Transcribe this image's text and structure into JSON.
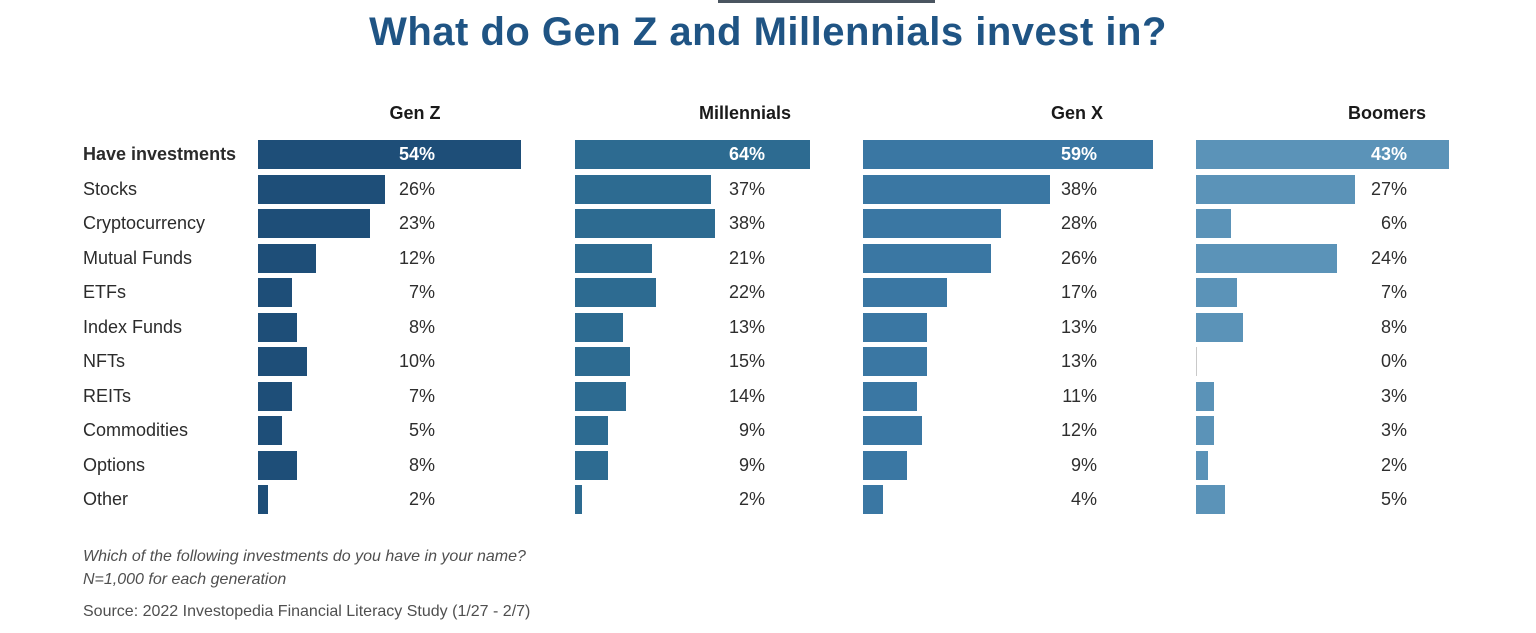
{
  "title": "What do Gen Z and Millennials invest in?",
  "chart_data": {
    "type": "bar",
    "orientation": "horizontal",
    "unit": "%",
    "title": "What do Gen Z and Millennials invest in?",
    "categories": [
      "Have investments",
      "Stocks",
      "Cryptocurrency",
      "Mutual Funds",
      "ETFs",
      "Index Funds",
      "NFTs",
      "REITs",
      "Commodities",
      "Options",
      "Other"
    ],
    "series": [
      {
        "name": "Gen Z",
        "color": "#1e4e78",
        "values": [
          54,
          26,
          23,
          12,
          7,
          8,
          10,
          7,
          5,
          8,
          2
        ]
      },
      {
        "name": "Millennials",
        "color": "#2d6b91",
        "values": [
          64,
          37,
          38,
          21,
          22,
          13,
          15,
          14,
          9,
          9,
          2
        ]
      },
      {
        "name": "Gen X",
        "color": "#3a77a3",
        "values": [
          59,
          38,
          28,
          26,
          17,
          13,
          13,
          11,
          12,
          9,
          4
        ]
      },
      {
        "name": "Boomers",
        "color": "#5b93b8",
        "values": [
          43,
          27,
          6,
          24,
          7,
          8,
          0,
          3,
          3,
          2,
          5
        ]
      }
    ],
    "value_labels": true,
    "legend_position": "column-headers",
    "grid": false,
    "xlabel": "",
    "ylabel": ""
  },
  "footnotes": {
    "question": "Which of the following investments do you have in your name?",
    "sample": "N=1,000 for each generation"
  },
  "source": "Source: 2022 Investopedia Financial Literacy Study (1/27 - 2/7)",
  "colors": {
    "title": "#1f5484",
    "zero_bar": "#c9c9c9"
  }
}
